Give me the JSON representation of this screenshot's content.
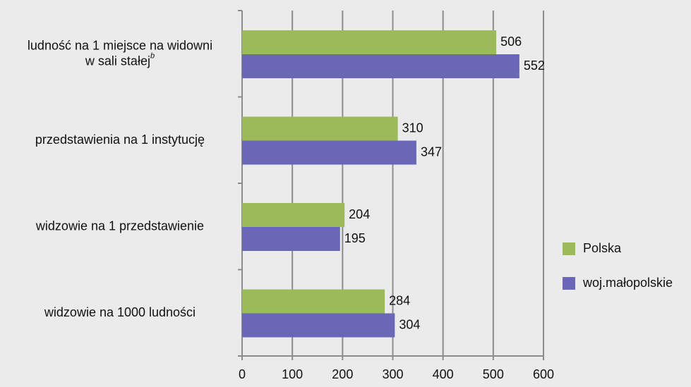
{
  "chart_data": {
    "type": "barh",
    "categories": [
      {
        "lines": [
          "ludność na 1 miejsce na widowni",
          "w sali stałej"
        ],
        "footnote": "b"
      },
      {
        "lines": [
          "przedstawienia na 1 instytucję"
        ]
      },
      {
        "lines": [
          "widzowie na 1 przedstawienie"
        ]
      },
      {
        "lines": [
          "widzowie na 1000 ludności"
        ]
      }
    ],
    "series": [
      {
        "name": "Polska",
        "color": "#9bbb59",
        "values": [
          506,
          310,
          204,
          284
        ]
      },
      {
        "name": "woj.małopolskie",
        "color": "#6a67b7",
        "values": [
          552,
          347,
          195,
          304
        ]
      }
    ],
    "xlim": [
      0,
      600
    ],
    "xticks": [
      0,
      100,
      200,
      300,
      400,
      500,
      600
    ],
    "grid": true,
    "legend": "right"
  }
}
